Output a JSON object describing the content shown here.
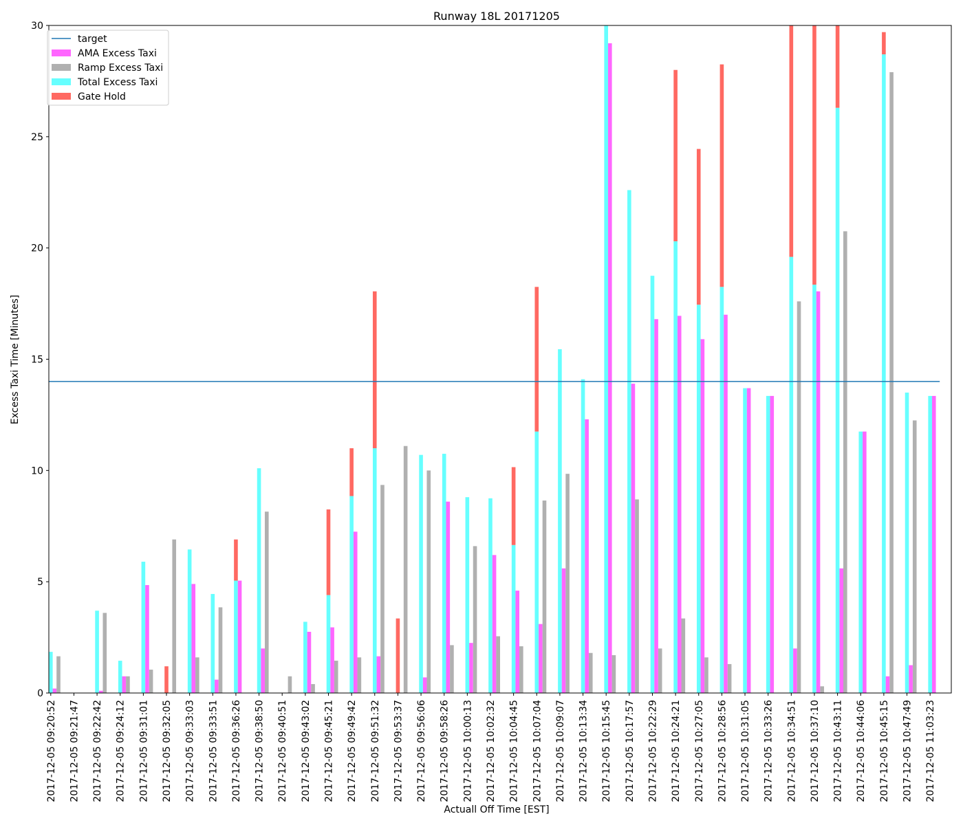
{
  "chart_data": {
    "type": "bar",
    "title": "Runway 18L 20171205",
    "xlabel": "Actuall Off Time [EST]",
    "ylabel": "Excess Taxi Time [Minutes]",
    "ylim": [
      0,
      30
    ],
    "yticks": [
      0,
      5,
      10,
      15,
      20,
      25,
      30
    ],
    "grid": false,
    "legend_position": "upper-left",
    "target": {
      "name": "target",
      "value": 14,
      "color": "#1f77b4"
    },
    "categories": [
      "2017-12-05 09:20:52",
      "2017-12-05 09:21:47",
      "2017-12-05 09:22:42",
      "2017-12-05 09:24:12",
      "2017-12-05 09:31:01",
      "2017-12-05 09:32:05",
      "2017-12-05 09:33:03",
      "2017-12-05 09:33:51",
      "2017-12-05 09:36:26",
      "2017-12-05 09:38:50",
      "2017-12-05 09:40:51",
      "2017-12-05 09:43:02",
      "2017-12-05 09:45:21",
      "2017-12-05 09:49:42",
      "2017-12-05 09:51:32",
      "2017-12-05 09:53:37",
      "2017-12-05 09:56:06",
      "2017-12-05 09:58:26",
      "2017-12-05 10:00:13",
      "2017-12-05 10:02:32",
      "2017-12-05 10:04:45",
      "2017-12-05 10:07:04",
      "2017-12-05 10:09:07",
      "2017-12-05 10:13:34",
      "2017-12-05 10:15:45",
      "2017-12-05 10:17:57",
      "2017-12-05 10:22:29",
      "2017-12-05 10:24:21",
      "2017-12-05 10:27:05",
      "2017-12-05 10:28:56",
      "2017-12-05 10:31:05",
      "2017-12-05 10:33:26",
      "2017-12-05 10:34:51",
      "2017-12-05 10:37:10",
      "2017-12-05 10:43:11",
      "2017-12-05 10:44:06",
      "2017-12-05 10:45:15",
      "2017-12-05 10:47:49",
      "2017-12-05 11:03:23"
    ],
    "series": [
      {
        "name": "AMA Excess Taxi",
        "color": "#ff66ff",
        "values": [
          0.2,
          0,
          0.1,
          0.75,
          4.85,
          0,
          4.9,
          0.6,
          5.05,
          2.0,
          0,
          2.75,
          2.95,
          7.25,
          1.65,
          0,
          0.7,
          8.6,
          2.25,
          6.2,
          4.6,
          3.1,
          5.6,
          12.3,
          29.2,
          13.9,
          16.8,
          16.95,
          15.9,
          17.0,
          13.7,
          13.35,
          2.0,
          18.05,
          5.6,
          11.75,
          0.75,
          1.25,
          13.35
        ]
      },
      {
        "name": "Ramp Excess Taxi",
        "color": "#b0b0b0",
        "values": [
          1.65,
          0,
          3.6,
          0.75,
          1.05,
          6.9,
          1.6,
          3.85,
          0,
          8.15,
          0.75,
          0.4,
          1.45,
          1.6,
          9.35,
          11.1,
          10.0,
          2.15,
          6.6,
          2.55,
          2.1,
          8.65,
          9.85,
          1.8,
          1.7,
          8.7,
          2.0,
          3.35,
          1.6,
          1.3,
          0,
          0,
          17.6,
          0.3,
          20.75,
          0,
          27.9,
          12.25,
          0
        ]
      },
      {
        "name": "Total Excess Taxi",
        "color": "#66ffff",
        "values": [
          1.85,
          0,
          3.7,
          1.45,
          5.9,
          0,
          6.45,
          4.45,
          5.05,
          10.1,
          0,
          3.2,
          4.4,
          8.85,
          11.0,
          0,
          10.7,
          10.75,
          8.8,
          8.75,
          6.65,
          11.75,
          15.45,
          14.1,
          30.0,
          22.6,
          18.75,
          20.3,
          17.45,
          18.25,
          13.7,
          13.35,
          19.6,
          18.35,
          26.3,
          11.75,
          28.7,
          13.5,
          13.35
        ]
      },
      {
        "name": "Gate Hold",
        "color": "#ff6962",
        "values": [
          0,
          0,
          0,
          0,
          0,
          1.2,
          0,
          0,
          1.85,
          0,
          0,
          0,
          3.85,
          2.15,
          7.05,
          3.35,
          0,
          0,
          0,
          0,
          3.5,
          6.5,
          0,
          0,
          0,
          0,
          0,
          7.7,
          7.0,
          10.0,
          0,
          0,
          10.4,
          11.65,
          3.7,
          0,
          1.0,
          0,
          0
        ]
      }
    ]
  }
}
